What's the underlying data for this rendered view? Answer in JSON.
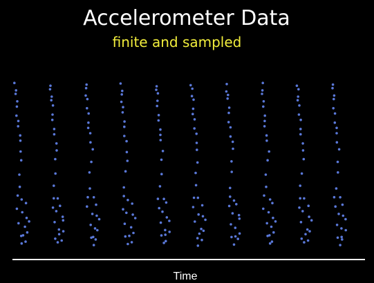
{
  "title": "Accelerometer Data",
  "subtitle": "finite and sampled",
  "colors": {
    "background": "#000000",
    "title": "#ffffff",
    "subtitle": "#f2ee3c",
    "points": "#5a78d8",
    "axis": "#ffffff"
  },
  "chart_data": {
    "type": "scatter",
    "title": "Accelerometer Data",
    "subtitle": "finite and sampled",
    "xlabel": "Time",
    "ylabel": "",
    "grid": false,
    "legend": "none",
    "cycles": 10,
    "samples_per_cycle": 28,
    "cycle_pattern": [
      [
        0.0,
        0.93
      ],
      [
        0.02,
        0.9
      ],
      [
        0.04,
        0.87
      ],
      [
        0.06,
        0.84
      ],
      [
        0.08,
        0.8
      ],
      [
        0.1,
        0.76
      ],
      [
        0.13,
        0.72
      ],
      [
        0.16,
        0.68
      ],
      [
        0.2,
        0.64
      ],
      [
        0.25,
        0.6
      ],
      [
        0.3,
        0.55
      ],
      [
        0.27,
        0.49
      ],
      [
        0.22,
        0.42
      ],
      [
        0.18,
        0.34
      ],
      [
        0.12,
        0.28
      ],
      [
        0.35,
        0.27
      ],
      [
        0.5,
        0.24
      ],
      [
        0.1,
        0.22
      ],
      [
        0.3,
        0.19
      ],
      [
        0.55,
        0.17
      ],
      [
        0.2,
        0.13
      ],
      [
        0.45,
        0.1
      ],
      [
        0.6,
        0.08
      ],
      [
        0.25,
        0.05
      ],
      [
        0.5,
        0.03
      ],
      [
        0.35,
        0.01
      ],
      [
        0.65,
        0.15
      ],
      [
        0.4,
        0.06
      ]
    ]
  },
  "x_axis_label": "Time"
}
